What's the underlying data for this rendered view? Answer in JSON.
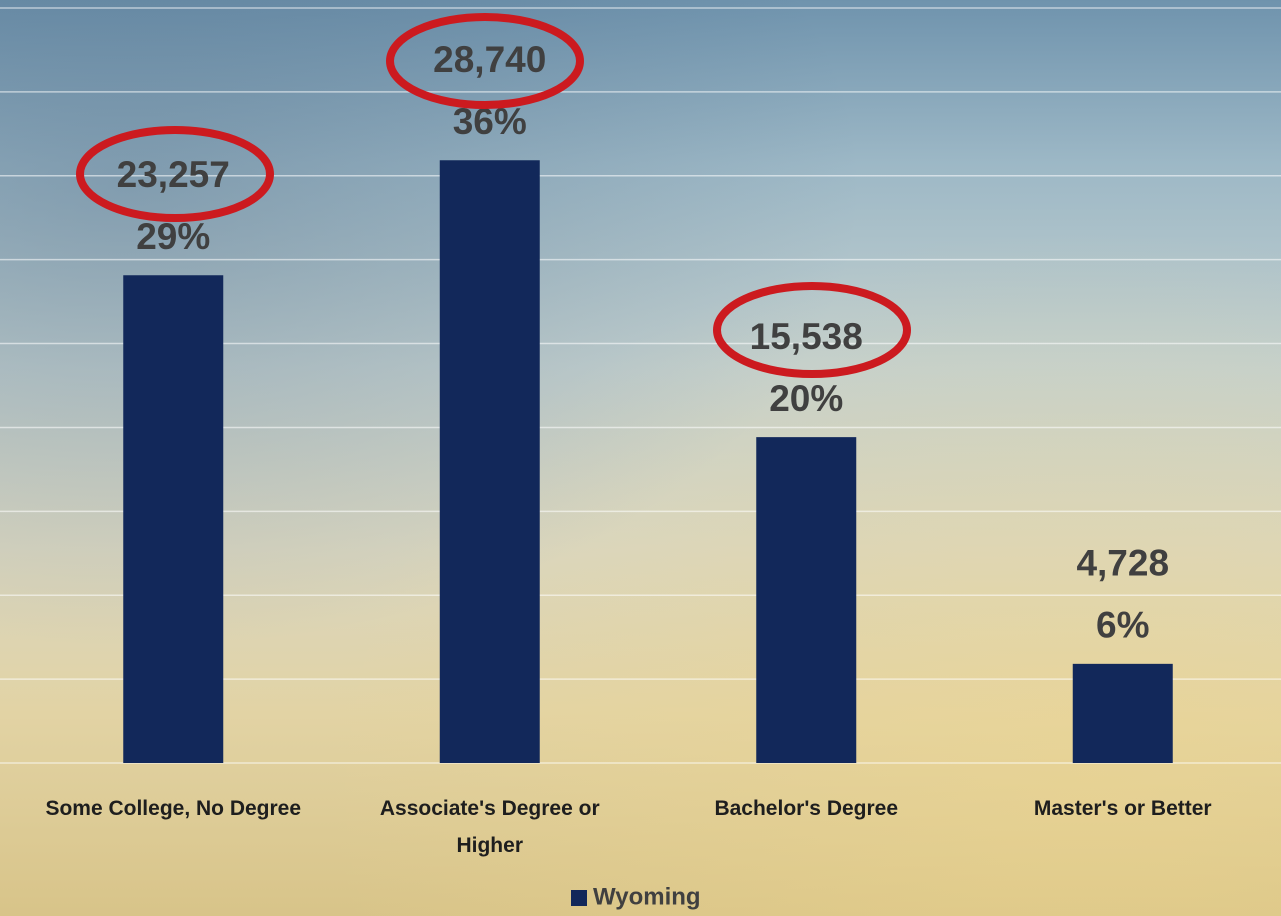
{
  "chart_data": {
    "type": "bar",
    "categories": [
      "Some College, No Degree",
      "Associate's Degree or Higher",
      "Bachelor's Degree",
      "Master's or Better"
    ],
    "series": [
      {
        "name": "Wyoming",
        "color": "#12285a",
        "values": [
          23257,
          28740,
          15538,
          4728
        ],
        "value_labels": [
          "23,257",
          "28,740",
          "15,538",
          "4,728"
        ],
        "percent_labels": [
          "29%",
          "36%",
          "20%",
          "6%"
        ]
      }
    ],
    "ylim": [
      0,
      36000
    ],
    "yticks": [
      0,
      4000,
      8000,
      12000,
      16000,
      20000,
      24000,
      28000,
      32000,
      36000
    ],
    "grid": true
  }
}
